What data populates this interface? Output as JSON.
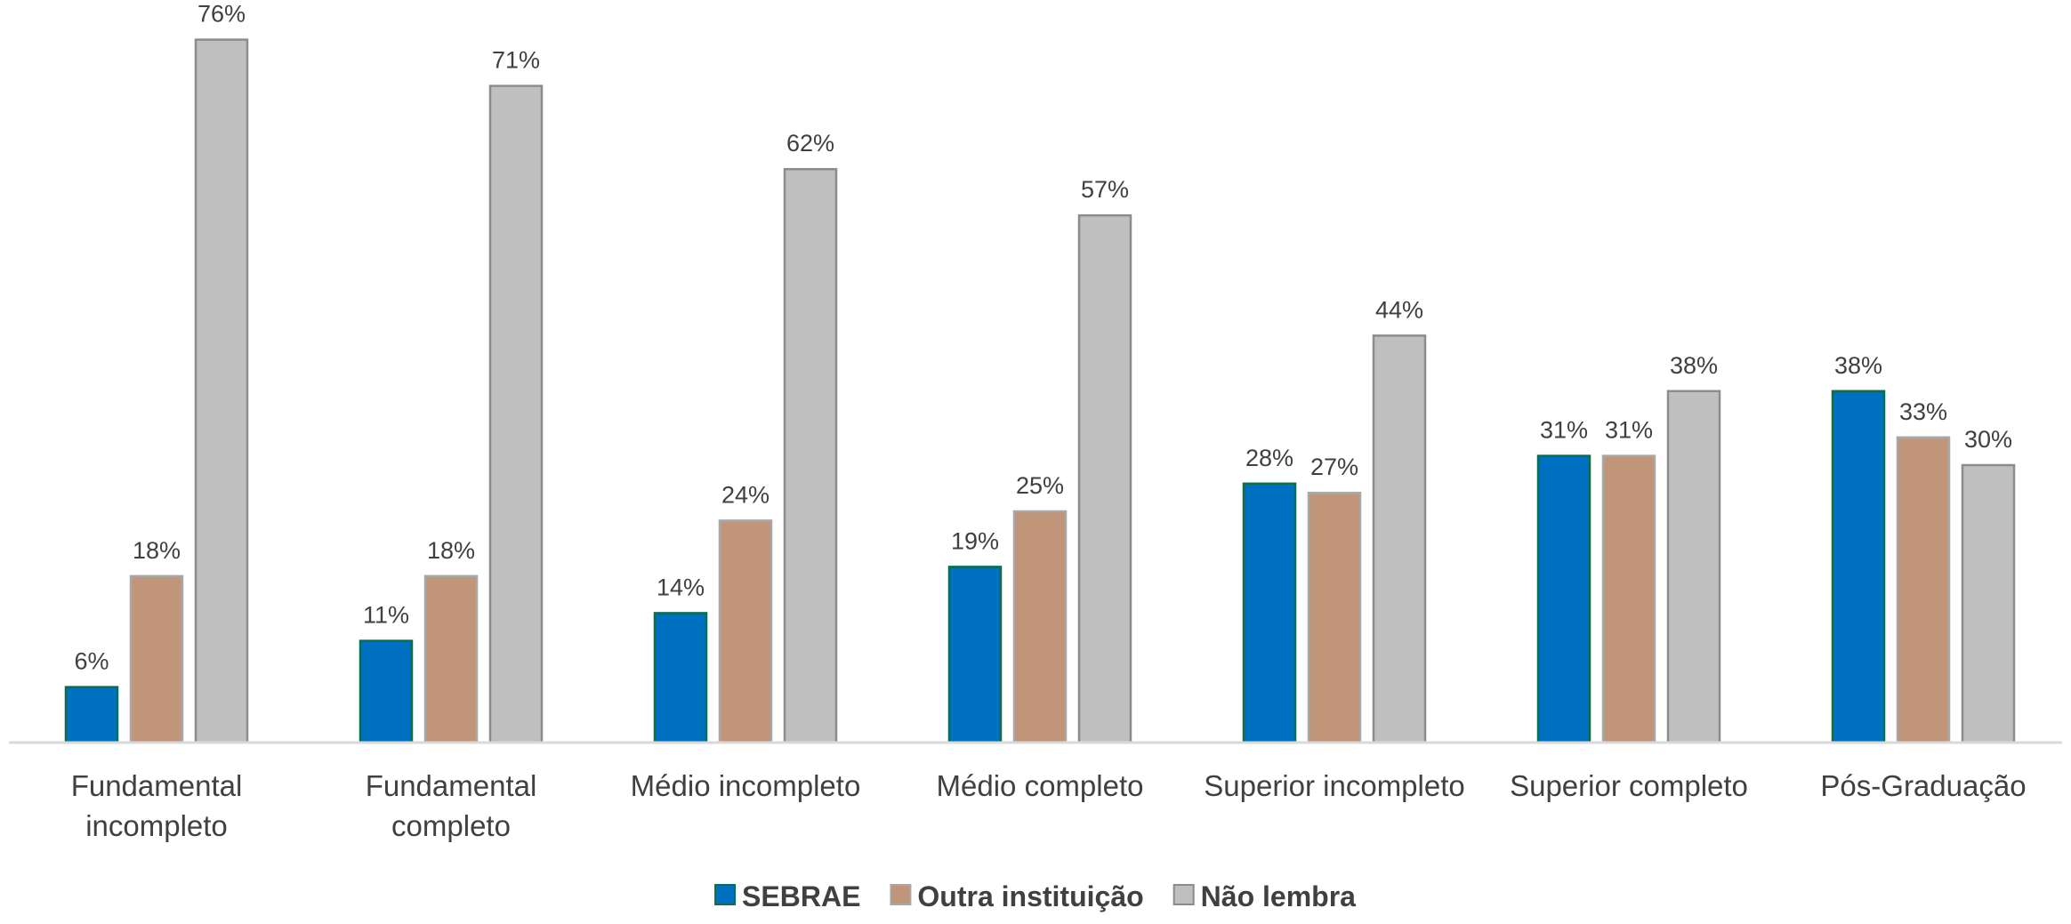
{
  "chart_data": {
    "type": "bar",
    "categories": [
      [
        "Fundamental",
        "incompleto"
      ],
      [
        "Fundamental",
        "completo"
      ],
      [
        "Médio incompleto"
      ],
      [
        "Médio completo"
      ],
      [
        "Superior incompleto"
      ],
      [
        "Superior completo"
      ],
      [
        "Pós-Graduação"
      ]
    ],
    "series": [
      {
        "name": "SEBRAE",
        "color": "#0070C0",
        "stroke": "#0B6E4F",
        "values": [
          6,
          11,
          14,
          19,
          28,
          31,
          38
        ]
      },
      {
        "name": "Outra instituição",
        "color": "#C0957A",
        "stroke": "#A8A8A8",
        "values": [
          18,
          18,
          24,
          25,
          27,
          31,
          33
        ]
      },
      {
        "name": "Não lembra",
        "color": "#BFBFBF",
        "stroke": "#8C8C8C",
        "values": [
          76,
          71,
          62,
          57,
          44,
          38,
          30
        ]
      }
    ],
    "value_suffix": "%",
    "ylim": [
      0,
      80
    ],
    "grid": false,
    "legend": "bottom-center"
  }
}
